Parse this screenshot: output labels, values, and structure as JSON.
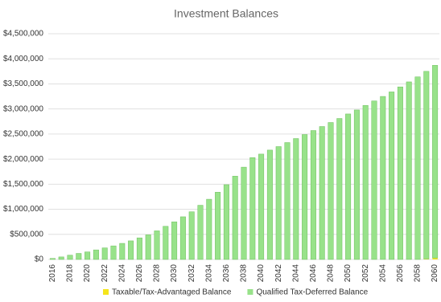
{
  "chart_data": {
    "type": "stacked_bar",
    "title": "Investment Balances",
    "categories": [
      "2016",
      null,
      "2018",
      null,
      "2020",
      null,
      "2022",
      null,
      "2024",
      null,
      "2026",
      null,
      "2028",
      null,
      "2030",
      null,
      "2032",
      null,
      "2034",
      null,
      "2036",
      null,
      "2038",
      null,
      "2040",
      null,
      "2042",
      null,
      "2044",
      null,
      "2046",
      null,
      "2048",
      null,
      "2050",
      null,
      "2052",
      null,
      "2054",
      null,
      "2056",
      null,
      "2058",
      null,
      "2060"
    ],
    "series": [
      {
        "name": "Taxable/Tax-Advantaged Balance",
        "color": "#f5e51b",
        "values": [
          0,
          0,
          0,
          0,
          0,
          0,
          0,
          0,
          0,
          0,
          0,
          0,
          0,
          0,
          0,
          0,
          0,
          0,
          0,
          0,
          0,
          0,
          0,
          0,
          0,
          0,
          0,
          0,
          0,
          0,
          0,
          0,
          0,
          0,
          0,
          0,
          0,
          0,
          0,
          0,
          0,
          0,
          0,
          10000,
          30000
        ]
      },
      {
        "name": "Qualified Tax-Deferred Balance",
        "color": "#98e28a",
        "values": [
          20000,
          50000,
          85000,
          120000,
          150000,
          190000,
          230000,
          270000,
          320000,
          370000,
          430000,
          490000,
          570000,
          660000,
          750000,
          850000,
          950000,
          1080000,
          1200000,
          1340000,
          1490000,
          1660000,
          1840000,
          2030000,
          2100000,
          2180000,
          2250000,
          2330000,
          2410000,
          2490000,
          2570000,
          2650000,
          2730000,
          2810000,
          2900000,
          2980000,
          3070000,
          3160000,
          3250000,
          3340000,
          3440000,
          3540000,
          3640000,
          3740000,
          3840000
        ]
      }
    ],
    "ylim": [
      0,
      4500000
    ],
    "yticks": [
      {
        "value": 0,
        "label": "$0"
      },
      {
        "value": 500000,
        "label": "$500,000"
      },
      {
        "value": 1000000,
        "label": "$1,000,000"
      },
      {
        "value": 1500000,
        "label": "$1,500,000"
      },
      {
        "value": 2000000,
        "label": "$2,000,000"
      },
      {
        "value": 2500000,
        "label": "$2,500,000"
      },
      {
        "value": 3000000,
        "label": "$3,000,000"
      },
      {
        "value": 3500000,
        "label": "$3,500,000"
      },
      {
        "value": 4000000,
        "label": "$4,000,000"
      },
      {
        "value": 4500000,
        "label": "$4,500,000"
      }
    ],
    "grid": true,
    "legend": "bottom"
  }
}
